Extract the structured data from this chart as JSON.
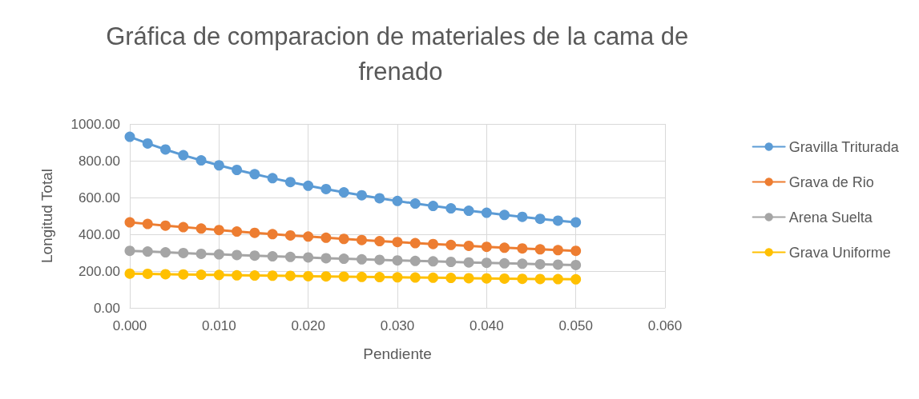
{
  "chart_data": {
    "type": "line",
    "title": "Gráfica de comparacion de materiales de la cama de frenado",
    "xlabel": "Pendiente",
    "ylabel": "Longitud Total",
    "x": [
      0,
      0.002,
      0.004,
      0.006,
      0.008,
      0.01,
      0.012,
      0.014,
      0.016,
      0.018,
      0.02,
      0.022,
      0.024,
      0.026,
      0.028,
      0.03,
      0.032,
      0.034,
      0.036,
      0.038,
      0.04,
      0.042,
      0.044,
      0.046,
      0.048,
      0.05
    ],
    "series": [
      {
        "name": "Gravilla Triturada",
        "color": "#5b9bd5",
        "values": [
          930,
          894,
          861,
          830,
          802,
          775,
          750,
          727,
          705,
          684,
          664,
          646,
          628,
          612,
          596,
          581,
          567,
          554,
          541,
          528,
          517,
          505,
          495,
          484,
          474,
          465
        ]
      },
      {
        "name": "Grava de Rio",
        "color": "#ed7d31",
        "values": [
          465,
          456,
          447,
          439,
          431,
          423,
          415,
          408,
          401,
          394,
          388,
          381,
          375,
          369,
          363,
          358,
          352,
          347,
          342,
          337,
          332,
          327,
          323,
          318,
          314,
          310
        ]
      },
      {
        "name": "Arena Suelta",
        "color": "#a5a5a5",
        "values": [
          310,
          306,
          302,
          298,
          294,
          291,
          287,
          284,
          280,
          277,
          274,
          270,
          267,
          264,
          261,
          258,
          255,
          253,
          250,
          247,
          245,
          242,
          240,
          237,
          235,
          233
        ]
      },
      {
        "name": "Grava Uniforme",
        "color": "#ffc000",
        "values": [
          186,
          185,
          183,
          182,
          180,
          179,
          177,
          176,
          175,
          174,
          172,
          171,
          170,
          168,
          167,
          166,
          165,
          164,
          163,
          161,
          160,
          159,
          158,
          157,
          156,
          155
        ]
      }
    ],
    "xlim": [
      0,
      0.06
    ],
    "xticks": [
      {
        "value": 0,
        "label": "0.000"
      },
      {
        "value": 0.01,
        "label": "0.010"
      },
      {
        "value": 0.02,
        "label": "0.020"
      },
      {
        "value": 0.03,
        "label": "0.030"
      },
      {
        "value": 0.04,
        "label": "0.040"
      },
      {
        "value": 0.05,
        "label": "0.050"
      },
      {
        "value": 0.06,
        "label": "0.060"
      }
    ],
    "ylim": [
      0,
      1000
    ],
    "yticks": [
      {
        "value": 0,
        "label": "0.00"
      },
      {
        "value": 200,
        "label": "200.00"
      },
      {
        "value": 400,
        "label": "400.00"
      },
      {
        "value": 600,
        "label": "600.00"
      },
      {
        "value": 800,
        "label": "800.00"
      },
      {
        "value": 1000,
        "label": "1000.00"
      }
    ],
    "grid": true,
    "legend": "right",
    "marker": "circle",
    "line_style": "solid"
  }
}
